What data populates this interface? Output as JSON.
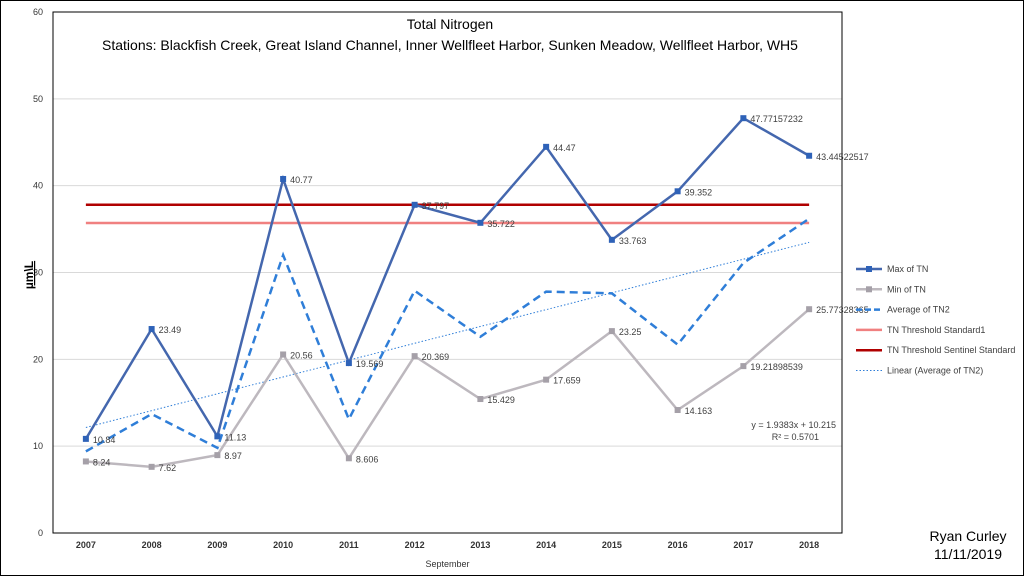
{
  "chart_data": {
    "type": "line",
    "title": "Total Nitrogen",
    "subtitle": "Stations: Blackfish Creek, Great Island Channel, Inner Wellfleet Harbor, Sunken Meadow, Wellfleet Harbor, WH5",
    "xlabel": "September",
    "ylabel": "µm\\L",
    "ylim": [
      0,
      60
    ],
    "yticks": [
      "0",
      "10",
      "20",
      "30",
      "40",
      "50",
      "60"
    ],
    "categories": [
      "2007",
      "2008",
      "2009",
      "2010",
      "2011",
      "2012",
      "2013",
      "2014",
      "2015",
      "2016",
      "2017",
      "2018"
    ],
    "series": [
      {
        "name": "Max of TN",
        "color": "#4467AE",
        "values": [
          10.84,
          23.49,
          11.13,
          40.77,
          19.569,
          37.797,
          35.722,
          44.47,
          33.763,
          39.352,
          47.77157232,
          43.44522517
        ],
        "labels": [
          "10.84",
          "23.49",
          "11.13",
          "40.77",
          "19.569",
          "37.797",
          "35.722",
          "44.47",
          "33.763",
          "39.352",
          "47.77157232",
          "43.44522517"
        ]
      },
      {
        "name": "Min of TN",
        "color": "#BDB8BE",
        "values": [
          8.24,
          7.62,
          8.97,
          20.56,
          8.606,
          20.369,
          15.429,
          17.659,
          23.25,
          14.163,
          19.21898539,
          25.77328365
        ],
        "labels": [
          "8.24",
          "7.62",
          "8.97",
          "20.56",
          "8.606",
          "20.369",
          "15.429",
          "17.659",
          "23.25",
          "14.163",
          "19.21898539",
          "25.77328365"
        ]
      },
      {
        "name": "Average of TN2",
        "color": "#2F7ED8",
        "values": [
          9.4,
          13.7,
          9.8,
          32.0,
          13.1,
          27.9,
          22.6,
          27.8,
          27.6,
          21.7,
          31.1,
          36.2
        ]
      }
    ],
    "thresholds": [
      {
        "name": "TN Threshold Standard1",
        "value": 35.7,
        "color": "#F08080"
      },
      {
        "name": "TN Threshold Sentinel Standard",
        "value": 37.8,
        "color": "#B00000"
      }
    ],
    "trendline": {
      "name": "Linear (Average of TN2)",
      "slope": 1.9383,
      "intercept": 10.215,
      "equation": "y = 1.9383x + 10.215",
      "r2": "R² = 0.5701",
      "color": "#2F7ED8"
    },
    "legend": "right"
  },
  "author": {
    "name": "Ryan Curley",
    "date": "11/11/2019"
  }
}
